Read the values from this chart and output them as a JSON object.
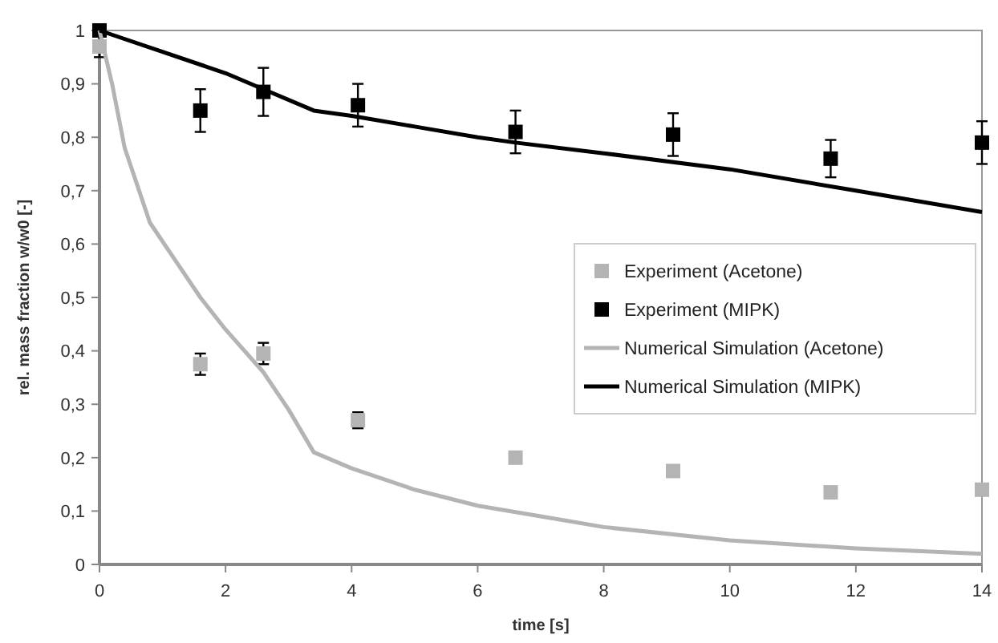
{
  "chart_data": {
    "type": "scatter",
    "xlabel": "time [s]",
    "ylabel": "rel. mass fraction w/w0 [-]",
    "xlim": [
      0,
      14
    ],
    "xticks": [
      0,
      2,
      4,
      6,
      8,
      10,
      12,
      14
    ],
    "ylim": [
      0,
      1
    ],
    "yticks": [
      0,
      {
        "value": 0.1,
        "label": "0,1"
      },
      {
        "value": 0.2,
        "label": "0,2"
      },
      {
        "value": 0.3,
        "label": "0,3"
      },
      {
        "value": 0.4,
        "label": "0,4"
      },
      {
        "value": 0.5,
        "label": "0,5"
      },
      {
        "value": 0.6,
        "label": "0,6"
      },
      {
        "value": 0.7,
        "label": "0,7"
      },
      {
        "value": 0.8,
        "label": "0,8"
      },
      {
        "value": 0.9,
        "label": "0,9"
      },
      1
    ],
    "grid": false,
    "legend": "right",
    "series": [
      {
        "name": "Experiment (Acetone)",
        "marker": "square",
        "color": "#b4b4b4",
        "x": [
          0,
          1.6,
          2.6,
          4.1,
          6.6,
          9.1,
          11.6,
          14
        ],
        "values": [
          0.97,
          0.375,
          0.395,
          0.27,
          0.2,
          0.175,
          0.135,
          0.14
        ],
        "errors": [
          0.02,
          0.02,
          0.02,
          0.015,
          null,
          null,
          null,
          null
        ]
      },
      {
        "name": "Experiment (MIPK)",
        "marker": "square",
        "color": "#000000",
        "x": [
          0,
          1.6,
          2.6,
          4.1,
          6.6,
          9.1,
          11.6,
          14
        ],
        "values": [
          1,
          0.85,
          0.885,
          0.86,
          0.81,
          0.805,
          0.76,
          0.79
        ],
        "errors": [
          null,
          0.04,
          0.045,
          0.04,
          0.04,
          0.04,
          0.035,
          0.04
        ]
      },
      {
        "name": "Numerical Simulation (Acetone)",
        "type": "line",
        "marker": "none",
        "line_style": "solid",
        "color": "#b4b4b4",
        "x": [
          0,
          0.2,
          0.4,
          0.8,
          1.2,
          1.6,
          2,
          2.6,
          3,
          3.4,
          4,
          5,
          6,
          7,
          8,
          10,
          12,
          14
        ],
        "values": [
          1,
          0.9,
          0.78,
          0.64,
          0.57,
          0.5,
          0.44,
          0.36,
          0.29,
          0.21,
          0.18,
          0.14,
          0.11,
          0.09,
          0.07,
          0.045,
          0.03,
          0.02
        ]
      },
      {
        "name": "Numerical Simulation (MIPK)",
        "type": "line",
        "marker": "none",
        "line_style": "solid",
        "color": "#000000",
        "x": [
          0,
          1,
          2,
          2.6,
          3.4,
          4,
          5,
          6,
          6.6,
          8,
          10,
          12,
          14
        ],
        "values": [
          1,
          0.96,
          0.92,
          0.89,
          0.85,
          0.84,
          0.82,
          0.8,
          0.79,
          0.77,
          0.74,
          0.7,
          0.66
        ]
      }
    ]
  }
}
